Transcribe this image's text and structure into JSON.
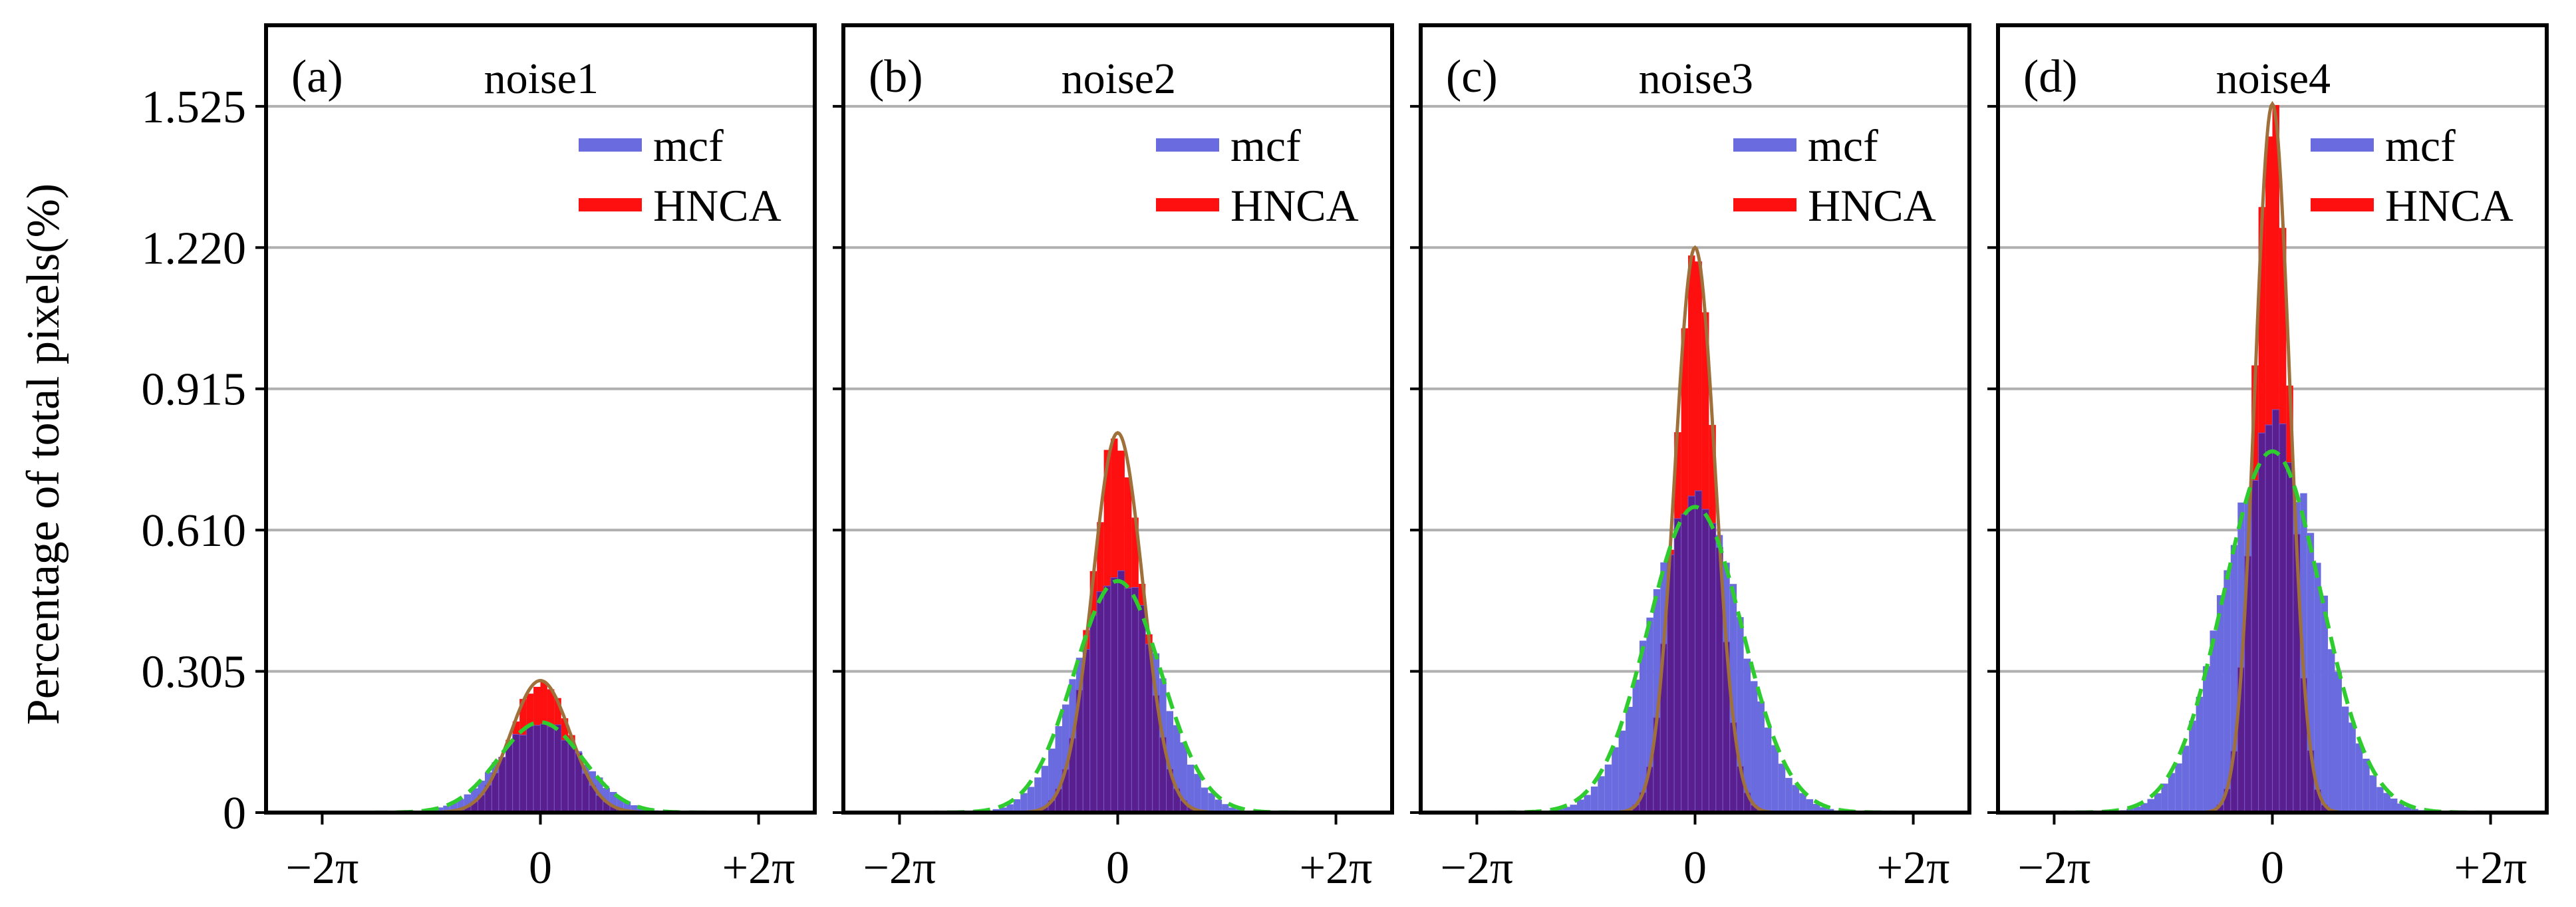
{
  "ylabel": "Percentage of total pixels(%)",
  "colors": {
    "mcf_bar": "#6b6be0",
    "hnca_bar": "#ff1010",
    "overlap": "#5a1f8f",
    "hnca_fit": "#a0703a",
    "mcf_fit": "#2ecc2e",
    "grid": "#b0b0b0",
    "axis": "#000000"
  },
  "chart_data": [
    {
      "type": "bar",
      "panel_label": "(a)",
      "title": "noise1",
      "xlabel": "",
      "ylabel": "Percentage of total pixels(%)",
      "xlim": [
        -7.9,
        7.9
      ],
      "ylim": [
        0,
        1.7
      ],
      "xticks": [
        -6.2832,
        0,
        6.2832
      ],
      "xtick_labels": [
        "−2π",
        "0",
        "+2π"
      ],
      "yticks": [
        0,
        0.305,
        0.61,
        0.915,
        1.22,
        1.525
      ],
      "ytick_labels": [
        "0",
        "0.305",
        "0.610",
        "0.915",
        "1.220",
        "1.525"
      ],
      "legend": {
        "position": "top-right",
        "entries": [
          "mcf",
          "HNCA"
        ]
      },
      "bin_width": 0.2,
      "series": [
        {
          "name": "mcf",
          "kind": "histogram",
          "peak": 0.195,
          "sigma": 1.2
        },
        {
          "name": "HNCA",
          "kind": "histogram",
          "peak": 0.285,
          "sigma": 0.85
        },
        {
          "name": "HNCA fit",
          "kind": "gaussian-solid",
          "peak": 0.285,
          "sigma": 0.85
        },
        {
          "name": "mcf fit",
          "kind": "gaussian-dashed",
          "peak": 0.195,
          "sigma": 1.2
        }
      ]
    },
    {
      "type": "bar",
      "panel_label": "(b)",
      "title": "noise2",
      "xlabel": "",
      "ylabel": "",
      "xlim": [
        -7.9,
        7.9
      ],
      "ylim": [
        0,
        1.7
      ],
      "xticks": [
        -6.2832,
        0,
        6.2832
      ],
      "xtick_labels": [
        "−2π",
        "0",
        "+2π"
      ],
      "yticks": [
        0,
        0.305,
        0.61,
        0.915,
        1.22,
        1.525
      ],
      "ytick_labels": [
        "0",
        "0.305",
        "0.610",
        "0.915",
        "1.220",
        "1.525"
      ],
      "legend": {
        "position": "top-right",
        "entries": [
          "mcf",
          "HNCA"
        ]
      },
      "bin_width": 0.2,
      "series": [
        {
          "name": "mcf",
          "kind": "histogram",
          "peak": 0.5,
          "sigma": 1.2
        },
        {
          "name": "HNCA",
          "kind": "histogram",
          "peak": 0.82,
          "sigma": 0.72
        },
        {
          "name": "HNCA fit",
          "kind": "gaussian-solid",
          "peak": 0.82,
          "sigma": 0.72
        },
        {
          "name": "mcf fit",
          "kind": "gaussian-dashed",
          "peak": 0.5,
          "sigma": 1.25
        }
      ]
    },
    {
      "type": "bar",
      "panel_label": "(c)",
      "title": "noise3",
      "xlabel": "",
      "ylabel": "",
      "xlim": [
        -7.9,
        7.9
      ],
      "ylim": [
        0,
        1.7
      ],
      "xticks": [
        -6.2832,
        0,
        6.2832
      ],
      "xtick_labels": [
        "−2π",
        "0",
        "+2π"
      ],
      "yticks": [
        0,
        0.305,
        0.61,
        0.915,
        1.22,
        1.525
      ],
      "ytick_labels": [
        "0",
        "0.305",
        "0.610",
        "0.915",
        "1.220",
        "1.525"
      ],
      "legend": {
        "position": "top-right",
        "entries": [
          "mcf",
          "HNCA"
        ]
      },
      "bin_width": 0.2,
      "series": [
        {
          "name": "mcf",
          "kind": "histogram",
          "peak": 0.68,
          "sigma": 1.3
        },
        {
          "name": "HNCA",
          "kind": "histogram",
          "peak": 1.22,
          "sigma": 0.58
        },
        {
          "name": "HNCA fit",
          "kind": "gaussian-solid",
          "peak": 1.22,
          "sigma": 0.58
        },
        {
          "name": "mcf fit",
          "kind": "gaussian-dashed",
          "peak": 0.66,
          "sigma": 1.35
        }
      ]
    },
    {
      "type": "bar",
      "panel_label": "(d)",
      "title": "noise4",
      "xlabel": "",
      "ylabel": "",
      "xlim": [
        -7.9,
        7.9
      ],
      "ylim": [
        0,
        1.7
      ],
      "xticks": [
        -6.2832,
        0,
        6.2832
      ],
      "xtick_labels": [
        "−2π",
        "0",
        "+2π"
      ],
      "yticks": [
        0,
        0.305,
        0.61,
        0.915,
        1.22,
        1.525
      ],
      "ytick_labels": [
        "0",
        "0.305",
        "0.610",
        "0.915",
        "1.220",
        "1.525"
      ],
      "legend": {
        "position": "top-right",
        "entries": [
          "mcf",
          "HNCA"
        ]
      },
      "bin_width": 0.2,
      "series": [
        {
          "name": "mcf",
          "kind": "histogram",
          "peak": 0.82,
          "sigma": 1.35
        },
        {
          "name": "HNCA",
          "kind": "histogram",
          "peak": 1.53,
          "sigma": 0.5
        },
        {
          "name": "HNCA fit",
          "kind": "gaussian-solid",
          "peak": 1.53,
          "sigma": 0.5
        },
        {
          "name": "mcf fit",
          "kind": "gaussian-dashed",
          "peak": 0.78,
          "sigma": 1.4
        }
      ]
    }
  ]
}
